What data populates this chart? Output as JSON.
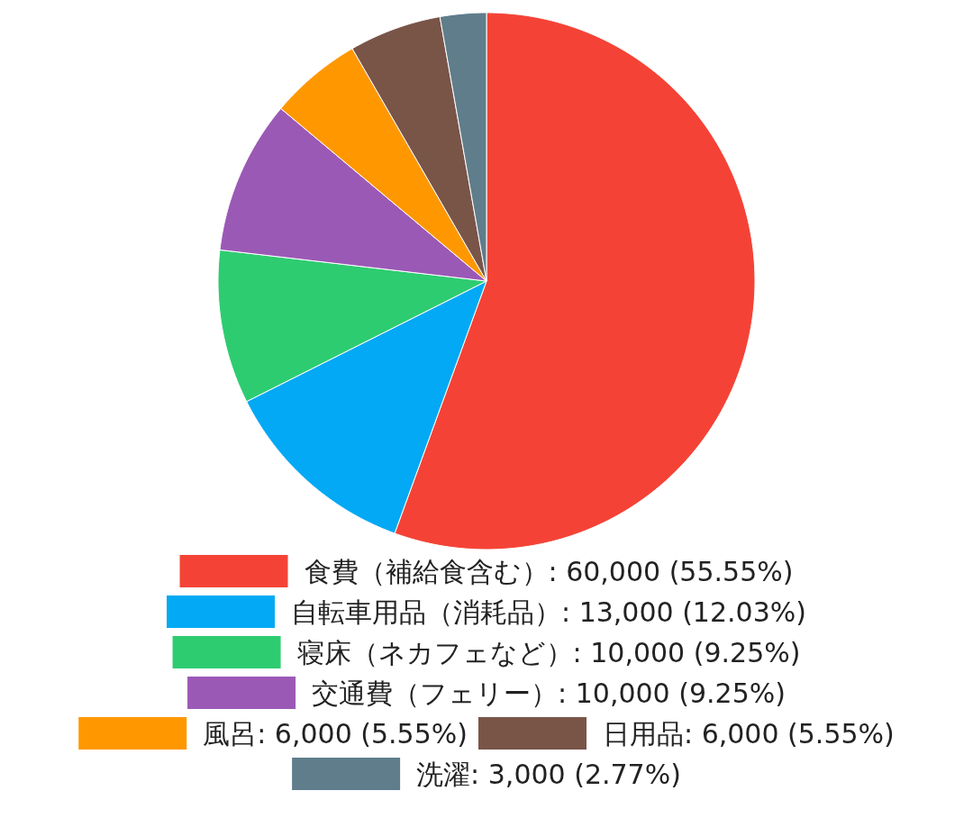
{
  "chart_data": {
    "type": "pie",
    "categories": [
      "食費（補給食含む）",
      "自転車用品（消耗品）",
      "寝床（ネカフェなど）",
      "交通費（フェリー）",
      "風呂",
      "日用品",
      "洗濯"
    ],
    "values": [
      60000,
      13000,
      10000,
      10000,
      6000,
      6000,
      3000
    ],
    "value_labels": [
      "60,000 (55.55%)",
      "13,000 (12.03%)",
      "10,000 (9.25%)",
      "10,000 (9.25%)",
      "6,000 (5.55%)",
      "6,000 (5.55%)",
      "3,000 (2.77%)"
    ],
    "colors": [
      "#f44336",
      "#03a9f4",
      "#2ecc71",
      "#9b59b6",
      "#ff9800",
      "#795548",
      "#607d8b"
    ],
    "legend": "bottom"
  }
}
